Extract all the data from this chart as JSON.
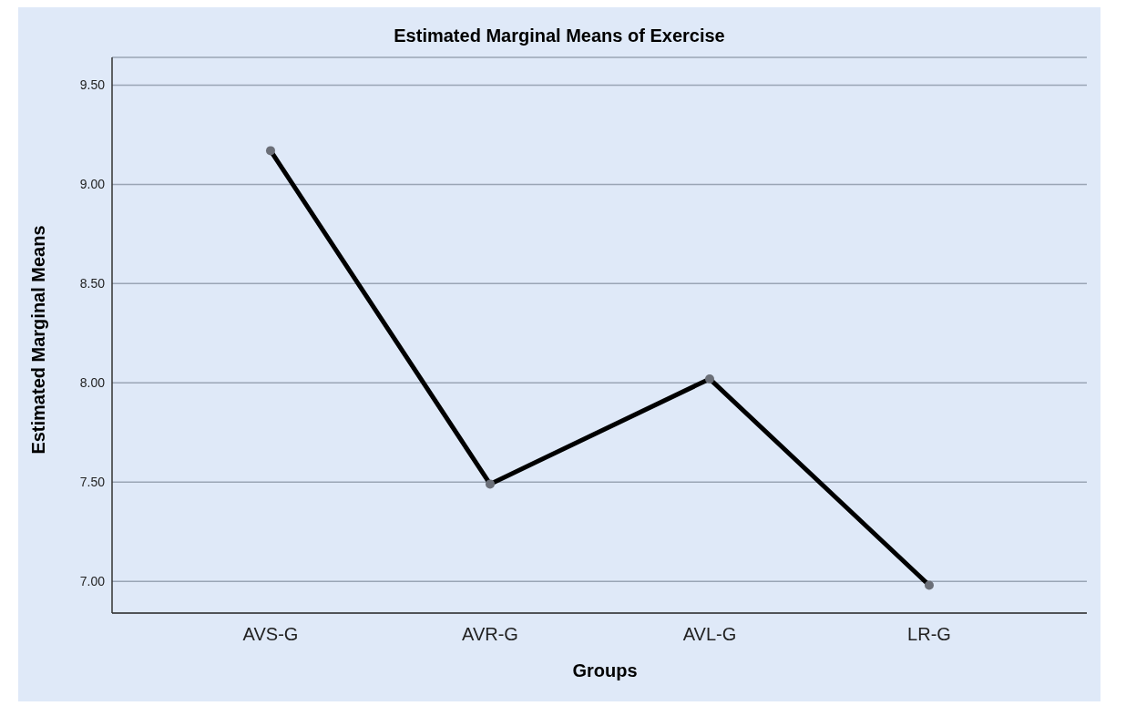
{
  "chart_data": {
    "type": "line",
    "title": "Estimated Marginal Means of Exercise",
    "xlabel": "Groups",
    "ylabel": "Estimated Marginal Means",
    "categories": [
      "AVS-G",
      "AVR-G",
      "AVL-G",
      "LR-G"
    ],
    "series": [
      {
        "color": "#000000",
        "values": [
          9.17,
          7.49,
          8.02,
          6.98
        ]
      }
    ],
    "ylim": [
      6.84,
      9.64
    ],
    "yticks": [
      {
        "value": 7,
        "label": "7.00"
      },
      {
        "value": 7.5,
        "label": "7.50"
      },
      {
        "value": 8,
        "label": "8.00"
      },
      {
        "value": 8.5,
        "label": "8.50"
      },
      {
        "value": 9,
        "label": "9.00"
      },
      {
        "value": 9.5,
        "label": "9.50"
      }
    ],
    "grid": "y",
    "marker": "circle",
    "line_style": "solid",
    "legend": false
  }
}
